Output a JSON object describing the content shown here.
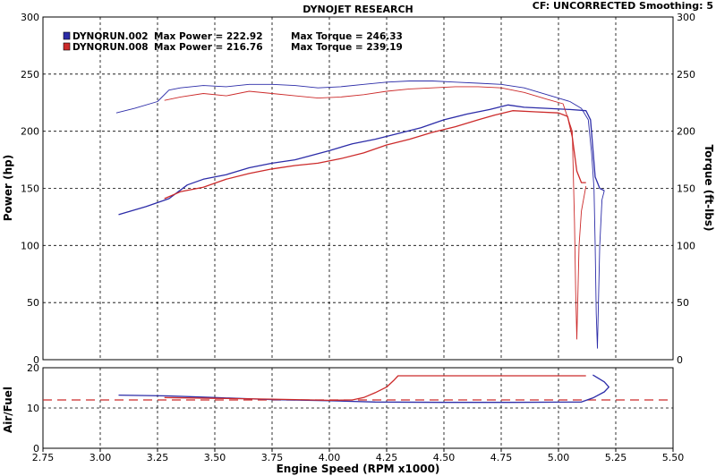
{
  "header": {
    "title": "DYNOJET RESEARCH",
    "status": "CF: UNCORRECTED  Smoothing: 5"
  },
  "colors": {
    "run_002": "#2c2ca8",
    "run_008": "#cc2a2a",
    "afr_target": "#cc2a2a"
  },
  "legend": [
    {
      "run": "DYNORUN.002",
      "max_power_label": "Max Power = 222.92",
      "max_torque_label": "Max Torque = 246.33",
      "color_key": "run_002"
    },
    {
      "run": "DYNORUN.008",
      "max_power_label": "Max Power = 216.76",
      "max_torque_label": "Max Torque = 239.19",
      "color_key": "run_008"
    }
  ],
  "chart_data": [
    {
      "type": "line",
      "xlabel": "Engine Speed (RPM x1000)",
      "ylabel": "Power (hp)",
      "y2label": "Torque (ft-lbs)",
      "xlim": [
        2.75,
        5.5
      ],
      "ylim": [
        0,
        300
      ],
      "y2lim": [
        0,
        300
      ],
      "x_ticks": [
        "2.75",
        "3.00",
        "3.25",
        "3.50",
        "3.75",
        "4.00",
        "4.25",
        "4.50",
        "4.75",
        "5.00",
        "5.25",
        "5.50"
      ],
      "y_ticks": [
        "0",
        "50",
        "100",
        "150",
        "200",
        "250",
        "300"
      ],
      "grid": true,
      "series": [
        {
          "name": "DYNORUN.002",
          "quantity": "power",
          "color_key": "run_002",
          "points": [
            [
              3.08,
              127
            ],
            [
              3.2,
              134
            ],
            [
              3.3,
              141
            ],
            [
              3.38,
              153
            ],
            [
              3.45,
              158
            ],
            [
              3.55,
              162
            ],
            [
              3.65,
              168
            ],
            [
              3.75,
              172
            ],
            [
              3.85,
              175
            ],
            [
              4.0,
              183
            ],
            [
              4.1,
              189
            ],
            [
              4.2,
              193
            ],
            [
              4.3,
              198
            ],
            [
              4.4,
              203
            ],
            [
              4.5,
              210
            ],
            [
              4.6,
              215
            ],
            [
              4.7,
              219
            ],
            [
              4.78,
              223
            ],
            [
              4.85,
              221
            ],
            [
              4.95,
              220
            ],
            [
              5.05,
              219
            ],
            [
              5.12,
              218
            ],
            [
              5.14,
              210
            ],
            [
              5.15,
              185
            ],
            [
              5.16,
              160
            ],
            [
              5.18,
              150
            ],
            [
              5.2,
              148
            ]
          ]
        },
        {
          "name": "DYNORUN.002",
          "quantity": "torque",
          "color_key": "run_002",
          "points": [
            [
              3.07,
              216
            ],
            [
              3.15,
              220
            ],
            [
              3.25,
              226
            ],
            [
              3.3,
              236
            ],
            [
              3.35,
              238
            ],
            [
              3.45,
              240
            ],
            [
              3.55,
              239
            ],
            [
              3.65,
              241
            ],
            [
              3.75,
              241
            ],
            [
              3.85,
              240
            ],
            [
              3.95,
              238
            ],
            [
              4.05,
              239
            ],
            [
              4.15,
              241
            ],
            [
              4.25,
              243
            ],
            [
              4.35,
              244
            ],
            [
              4.45,
              244
            ],
            [
              4.55,
              243
            ],
            [
              4.65,
              242
            ],
            [
              4.75,
              241
            ],
            [
              4.85,
              238
            ],
            [
              4.95,
              232
            ],
            [
              5.05,
              226
            ],
            [
              5.1,
              220
            ],
            [
              5.13,
              210
            ],
            [
              5.145,
              180
            ],
            [
              5.155,
              150
            ],
            [
              5.16,
              100
            ],
            [
              5.165,
              40
            ],
            [
              5.17,
              10
            ],
            [
              5.18,
              100
            ],
            [
              5.19,
              140
            ],
            [
              5.2,
              148
            ]
          ]
        },
        {
          "name": "DYNORUN.008",
          "quantity": "power",
          "color_key": "run_008",
          "points": [
            [
              3.28,
              141
            ],
            [
              3.35,
              147
            ],
            [
              3.45,
              151
            ],
            [
              3.55,
              158
            ],
            [
              3.65,
              163
            ],
            [
              3.75,
              167
            ],
            [
              3.85,
              170
            ],
            [
              3.95,
              172
            ],
            [
              4.05,
              176
            ],
            [
              4.15,
              181
            ],
            [
              4.25,
              188
            ],
            [
              4.35,
              193
            ],
            [
              4.45,
              199
            ],
            [
              4.55,
              204
            ],
            [
              4.65,
              210
            ],
            [
              4.72,
              214
            ],
            [
              4.8,
              218
            ],
            [
              4.9,
              217
            ],
            [
              5.0,
              216
            ],
            [
              5.04,
              213
            ],
            [
              5.06,
              195
            ],
            [
              5.08,
              165
            ],
            [
              5.1,
              155
            ],
            [
              5.12,
              155
            ]
          ]
        },
        {
          "name": "DYNORUN.008",
          "quantity": "torque",
          "color_key": "run_008",
          "points": [
            [
              3.28,
              227
            ],
            [
              3.35,
              230
            ],
            [
              3.45,
              233
            ],
            [
              3.55,
              231
            ],
            [
              3.65,
              235
            ],
            [
              3.75,
              233
            ],
            [
              3.85,
              231
            ],
            [
              3.95,
              229
            ],
            [
              4.05,
              230
            ],
            [
              4.15,
              232
            ],
            [
              4.25,
              235
            ],
            [
              4.35,
              237
            ],
            [
              4.45,
              238
            ],
            [
              4.55,
              239
            ],
            [
              4.65,
              239
            ],
            [
              4.75,
              238
            ],
            [
              4.85,
              234
            ],
            [
              4.95,
              228
            ],
            [
              5.02,
              224
            ],
            [
              5.06,
              200
            ],
            [
              5.07,
              120
            ],
            [
              5.075,
              60
            ],
            [
              5.08,
              18
            ],
            [
              5.09,
              100
            ],
            [
              5.1,
              130
            ],
            [
              5.12,
              152
            ]
          ]
        }
      ]
    },
    {
      "type": "line",
      "ylabel": "Air/Fuel",
      "xlim": [
        2.75,
        5.5
      ],
      "ylim": [
        0,
        20
      ],
      "y_ticks": [
        "0",
        "10",
        "20"
      ],
      "grid": true,
      "target_line": 12,
      "series": [
        {
          "name": "DYNORUN.002",
          "quantity": "air_fuel",
          "color_key": "run_002",
          "points": [
            [
              3.08,
              13.2
            ],
            [
              3.3,
              13.0
            ],
            [
              3.5,
              12.6
            ],
            [
              3.75,
              12.1
            ],
            [
              4.0,
              11.8
            ],
            [
              4.2,
              11.5
            ],
            [
              4.5,
              11.4
            ],
            [
              4.8,
              11.4
            ],
            [
              5.1,
              11.5
            ],
            [
              5.15,
              12.5
            ],
            [
              5.2,
              14.0
            ],
            [
              5.22,
              15.2
            ],
            [
              5.2,
              16.5
            ],
            [
              5.15,
              18.2
            ]
          ]
        },
        {
          "name": "DYNORUN.008",
          "quantity": "air_fuel",
          "color_key": "run_008",
          "points": [
            [
              3.28,
              12.6
            ],
            [
              3.5,
              12.4
            ],
            [
              3.75,
              12.2
            ],
            [
              4.0,
              11.9
            ],
            [
              4.1,
              12.0
            ],
            [
              4.15,
              12.6
            ],
            [
              4.2,
              13.8
            ],
            [
              4.25,
              15.2
            ],
            [
              4.28,
              16.8
            ],
            [
              4.3,
              18.0
            ],
            [
              4.5,
              18.0
            ],
            [
              4.75,
              18.0
            ],
            [
              5.0,
              18.0
            ],
            [
              5.12,
              18.0
            ]
          ]
        }
      ]
    }
  ]
}
